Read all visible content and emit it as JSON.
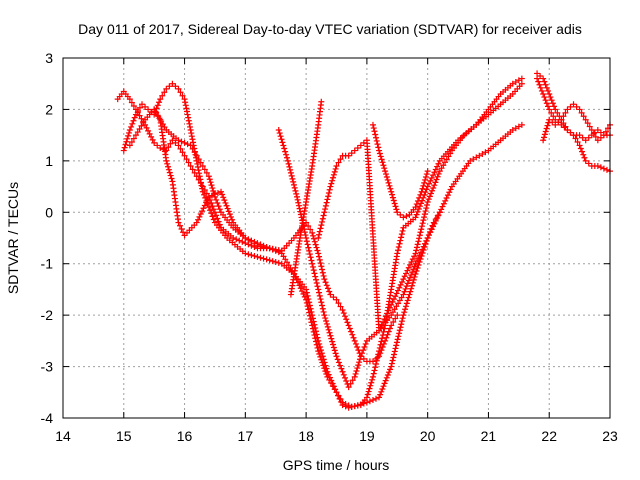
{
  "chart_data": {
    "type": "scatter",
    "title": "Day 011 of 2017, Sidereal Day-to-day VTEC variation (SDTVAR) for receiver adis",
    "xlabel": "GPS time / hours",
    "ylabel": "SDTVAR / TECUs",
    "xlim": [
      14,
      23
    ],
    "ylim": [
      -4,
      3
    ],
    "xticks": [
      "14",
      "15",
      "16",
      "17",
      "18",
      "19",
      "20",
      "21",
      "22",
      "23"
    ],
    "yticks": [
      "-4",
      "-3",
      "-2",
      "-1",
      "0",
      "1",
      "2",
      "3"
    ],
    "grid": true,
    "legend": "none",
    "marker": "plus",
    "color": "#ff0000",
    "series": [
      {
        "x": [
          14.9,
          15.0,
          15.1,
          15.2,
          15.35,
          15.5,
          15.6,
          15.7,
          15.8,
          15.9,
          16.0,
          16.1,
          16.2,
          16.3,
          16.4,
          16.5,
          16.6,
          16.8,
          17.0,
          17.2,
          17.4,
          17.6
        ],
        "y": [
          2.2,
          2.35,
          2.2,
          2.0,
          1.7,
          1.35,
          1.25,
          1.2,
          1.4,
          1.3,
          1.1,
          0.9,
          0.7,
          0.5,
          0.3,
          0.0,
          -0.3,
          -0.5,
          -0.6,
          -0.7,
          -0.7,
          -0.75
        ]
      },
      {
        "x": [
          15.0,
          15.1,
          15.2,
          15.3,
          15.4,
          15.5,
          15.6,
          15.7,
          15.8,
          15.9,
          16.0,
          16.1,
          16.2,
          16.3,
          16.4,
          16.5,
          16.7,
          17.0,
          17.3,
          17.6,
          17.8,
          18.0,
          18.1,
          18.2,
          18.35,
          18.5,
          18.6,
          18.75,
          18.9,
          19.0,
          19.1,
          19.2,
          19.3,
          19.4,
          19.5,
          19.6,
          19.8,
          20.0,
          20.2,
          20.5,
          20.8,
          21.0,
          21.2,
          21.4,
          21.55
        ],
        "y": [
          1.2,
          1.6,
          1.9,
          2.1,
          2.0,
          1.9,
          2.2,
          2.4,
          2.5,
          2.4,
          2.2,
          1.6,
          1.0,
          0.4,
          0.1,
          -0.2,
          -0.5,
          -0.8,
          -0.9,
          -1.0,
          -1.2,
          -1.5,
          -2.0,
          -2.5,
          -3.1,
          -3.5,
          -3.7,
          -3.78,
          -3.75,
          -3.6,
          -3.2,
          -2.7,
          -2.2,
          -1.5,
          -0.8,
          -0.3,
          -0.1,
          0.5,
          1.0,
          1.4,
          1.7,
          2.0,
          2.3,
          2.5,
          2.6
        ]
      },
      {
        "x": [
          15.1,
          15.2,
          15.35,
          15.5,
          15.6,
          15.7,
          15.8,
          15.85,
          15.9,
          16.0,
          16.2,
          16.4,
          16.6,
          16.8,
          17.0,
          17.2,
          17.4,
          17.6,
          17.8,
          18.0,
          18.1,
          18.2,
          18.35,
          18.5,
          18.6,
          18.7,
          18.8,
          19.0,
          19.2,
          19.4,
          19.6,
          19.8,
          20.0,
          20.2,
          20.4,
          20.7,
          21.0,
          21.2,
          21.4,
          21.55
        ],
        "y": [
          1.3,
          1.5,
          1.8,
          2.0,
          1.8,
          1.0,
          0.6,
          0.2,
          -0.2,
          -0.45,
          -0.2,
          0.3,
          0.4,
          -0.2,
          -0.5,
          -0.6,
          -0.7,
          -0.8,
          -1.2,
          -1.7,
          -2.2,
          -2.7,
          -3.2,
          -3.5,
          -3.75,
          -3.8,
          -3.77,
          -3.7,
          -3.6,
          -3.0,
          -2.0,
          -1.2,
          -0.5,
          0.0,
          0.5,
          1.0,
          1.2,
          1.4,
          1.6,
          1.7
        ]
      },
      {
        "x": [
          15.5,
          15.7,
          15.9,
          16.1,
          16.2,
          16.3,
          16.4,
          16.5,
          16.6,
          16.8,
          17.0,
          17.2,
          17.4,
          17.6,
          17.8,
          18.0,
          18.1,
          18.2,
          18.3,
          18.4,
          18.5,
          18.6,
          18.7,
          18.8,
          18.9,
          19.0,
          19.1,
          19.2,
          19.3,
          19.4,
          19.5
        ],
        "y": [
          2.0,
          1.6,
          1.4,
          1.3,
          1.1,
          0.9,
          0.7,
          0.3,
          0.0,
          -0.3,
          -0.5,
          -0.65,
          -0.7,
          -0.75,
          -0.5,
          -0.2,
          -0.4,
          -0.8,
          -1.3,
          -1.6,
          -1.7,
          -1.9,
          -2.2,
          -2.5,
          -2.8,
          -2.9,
          -2.9,
          -2.8,
          -2.5,
          -2.2,
          -2.0
        ]
      },
      {
        "x": [
          17.55,
          17.7,
          17.85,
          18.0,
          18.1,
          18.2,
          18.3,
          18.4,
          18.5,
          18.6,
          18.7,
          18.8,
          18.9,
          19.0,
          19.2,
          19.4,
          19.6,
          19.8,
          20.0,
          20.1,
          20.2
        ],
        "y": [
          1.6,
          1.0,
          0.3,
          -0.5,
          -1.0,
          -1.5,
          -2.0,
          -2.4,
          -2.8,
          -3.1,
          -3.4,
          -3.2,
          -2.8,
          -2.5,
          -2.3,
          -2.0,
          -1.6,
          -1.0,
          -0.5,
          -0.2,
          0.0
        ]
      },
      {
        "x": [
          17.75,
          17.9,
          18.0,
          18.1,
          18.2,
          18.25
        ],
        "y": [
          -1.6,
          -0.5,
          0.2,
          0.9,
          1.7,
          2.15
        ]
      },
      {
        "x": [
          18.2,
          18.3,
          18.4,
          18.5,
          18.6,
          18.7,
          18.8,
          18.9,
          19.0,
          19.2,
          19.4,
          19.6,
          19.8,
          20.0,
          20.2,
          20.4,
          20.6,
          20.8,
          21.0,
          21.2,
          21.4,
          21.55
        ],
        "y": [
          -0.5,
          0.0,
          0.5,
          0.9,
          1.1,
          1.1,
          1.2,
          1.3,
          1.4,
          -2.3,
          -1.8,
          -1.3,
          -0.8,
          0.2,
          0.8,
          1.2,
          1.5,
          1.7,
          1.9,
          2.1,
          2.3,
          2.5
        ]
      },
      {
        "x": [
          19.1,
          19.2,
          19.3,
          19.4,
          19.5,
          19.6,
          19.7,
          19.8,
          19.9,
          20.0
        ],
        "y": [
          1.7,
          1.2,
          0.8,
          0.4,
          0.0,
          -0.1,
          -0.05,
          0.1,
          0.4,
          0.8
        ]
      },
      {
        "x": [
          21.8,
          21.9,
          22.0,
          22.1,
          22.2,
          22.3,
          22.4,
          22.5,
          22.6,
          22.7,
          22.8,
          22.9,
          23.0
        ],
        "y": [
          2.6,
          2.3,
          2.0,
          1.8,
          1.7,
          1.6,
          1.5,
          1.3,
          1.0,
          0.9,
          0.9,
          0.85,
          0.8
        ]
      },
      {
        "x": [
          21.8,
          21.9,
          22.0,
          22.1,
          22.2,
          22.3,
          22.4,
          22.5,
          22.6,
          22.7,
          22.8,
          22.9,
          23.0
        ],
        "y": [
          2.7,
          2.6,
          2.3,
          2.0,
          1.8,
          1.6,
          1.5,
          1.5,
          1.4,
          1.5,
          1.6,
          1.5,
          1.5
        ]
      },
      {
        "x": [
          21.9,
          22.0,
          22.1,
          22.2,
          22.3,
          22.4,
          22.5,
          22.6,
          22.7,
          22.8,
          22.9,
          23.0
        ],
        "y": [
          1.4,
          1.8,
          1.7,
          1.8,
          2.0,
          2.1,
          2.0,
          1.8,
          1.6,
          1.4,
          1.5,
          1.7
        ]
      }
    ]
  }
}
